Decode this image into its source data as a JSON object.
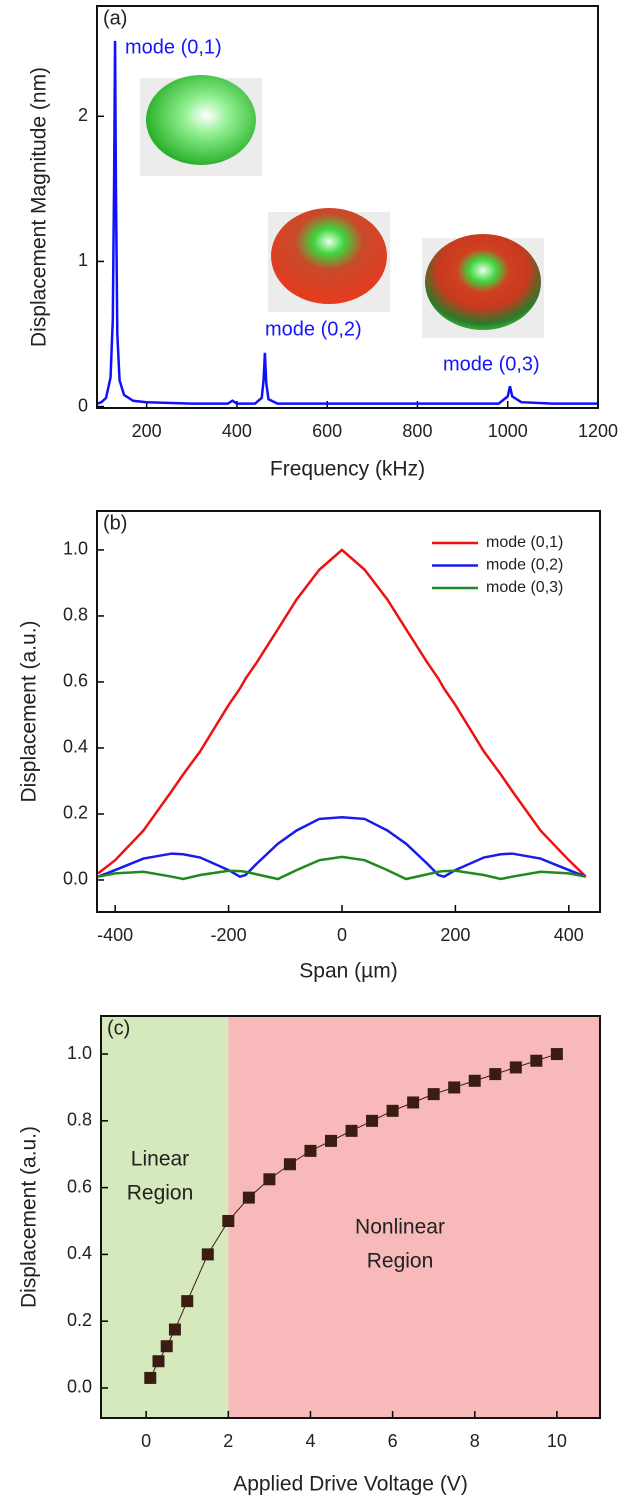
{
  "chart_data": [
    {
      "type": "line",
      "label": "(a)",
      "ylabel": "Displacement Magnitude (nm)",
      "xlabel": "Frequency (kHz)",
      "x": [
        90,
        100,
        110,
        120,
        125,
        128,
        130,
        132,
        135,
        140,
        150,
        170,
        200,
        300,
        380,
        390,
        400,
        440,
        455,
        459,
        462,
        465,
        470,
        490,
        550,
        700,
        900,
        980,
        1000,
        1005,
        1010,
        1030,
        1100,
        1200
      ],
      "values": [
        0.02,
        0.03,
        0.06,
        0.2,
        0.6,
        1.6,
        2.52,
        1.5,
        0.5,
        0.18,
        0.08,
        0.04,
        0.03,
        0.02,
        0.02,
        0.04,
        0.02,
        0.02,
        0.06,
        0.18,
        0.37,
        0.16,
        0.05,
        0.02,
        0.02,
        0.02,
        0.02,
        0.02,
        0.07,
        0.14,
        0.07,
        0.03,
        0.02,
        0.02
      ],
      "color": "#1010ff",
      "annotations": [
        "mode (0,1)",
        "mode (0,2)",
        "mode (0,3)"
      ],
      "annotation_color": "#1515ff",
      "xlim": [
        90,
        1200
      ],
      "xticks": [
        200,
        400,
        600,
        800,
        1000,
        1200
      ],
      "ylim": [
        -0.01,
        2.76
      ],
      "yticks": [
        0,
        1,
        2
      ]
    },
    {
      "type": "line",
      "label": "(b)",
      "ylabel": "Displacement (a.u.)",
      "xlabel": "Span (µm)",
      "x": [
        -430,
        -400,
        -350,
        -300,
        -280,
        -250,
        -200,
        -180,
        -170,
        -150,
        -113,
        -80,
        -40,
        0,
        40,
        80,
        113,
        150,
        170,
        180,
        200,
        250,
        280,
        300,
        350,
        400,
        430
      ],
      "series": [
        {
          "name": "mode (0,1)",
          "color": "#ee1111",
          "values": [
            0.02,
            0.06,
            0.15,
            0.27,
            0.32,
            0.39,
            0.53,
            0.58,
            0.61,
            0.66,
            0.76,
            0.85,
            0.94,
            1.0,
            0.94,
            0.85,
            0.76,
            0.66,
            0.61,
            0.58,
            0.53,
            0.39,
            0.32,
            0.27,
            0.15,
            0.06,
            0.01
          ]
        },
        {
          "name": "mode (0,2)",
          "color": "#1a1aee",
          "values": [
            0.01,
            0.03,
            0.065,
            0.08,
            0.078,
            0.068,
            0.03,
            0.01,
            0.015,
            0.05,
            0.11,
            0.15,
            0.185,
            0.19,
            0.185,
            0.15,
            0.11,
            0.05,
            0.015,
            0.01,
            0.03,
            0.068,
            0.078,
            0.08,
            0.065,
            0.03,
            0.01
          ]
        },
        {
          "name": "mode (0,3)",
          "color": "#1f8a1f",
          "values": [
            0.01,
            0.02,
            0.025,
            0.01,
            0.003,
            0.015,
            0.028,
            0.027,
            0.025,
            0.017,
            0.003,
            0.03,
            0.06,
            0.07,
            0.06,
            0.03,
            0.003,
            0.017,
            0.025,
            0.027,
            0.028,
            0.015,
            0.003,
            0.01,
            0.025,
            0.02,
            0.01
          ]
        }
      ],
      "legend": "upper right",
      "xlim": [
        -432,
        455
      ],
      "xticks": [
        -400,
        -200,
        0,
        200,
        400
      ],
      "ylim": [
        -0.097,
        1.118
      ],
      "yticks": [
        {
          "value": 0,
          "label": "0.0"
        },
        0.2,
        0.4,
        0.6,
        0.8,
        {
          "value": 1,
          "label": "1.0"
        }
      ]
    },
    {
      "type": "line",
      "label": "(c)",
      "ylabel": "Displacement (a.u.)",
      "xlabel": "Applied Drive Voltage (V)",
      "x": [
        0.1,
        0.3,
        0.5,
        0.7,
        1.0,
        1.5,
        2,
        2.5,
        3,
        3.5,
        4,
        4.5,
        5,
        5.5,
        6,
        6.5,
        7,
        7.5,
        8,
        8.5,
        9,
        9.5,
        10
      ],
      "values": [
        0.03,
        0.08,
        0.125,
        0.175,
        0.26,
        0.4,
        0.5,
        0.57,
        0.625,
        0.67,
        0.71,
        0.74,
        0.77,
        0.8,
        0.83,
        0.855,
        0.88,
        0.9,
        0.92,
        0.94,
        0.96,
        0.98,
        1.0
      ],
      "color": "#3b1c12",
      "marker": "square",
      "region_boundary": 2,
      "regions": [
        {
          "label": [
            "Linear",
            "Region"
          ],
          "color": "#d5e9bd"
        },
        {
          "label": [
            "Nonlinear",
            "Region"
          ],
          "color": "#f7b9b9"
        }
      ],
      "xlim": [
        -1.1,
        11.05
      ],
      "xticks": [
        0,
        2,
        4,
        6,
        8,
        10
      ],
      "ylim": [
        -0.09,
        1.114
      ],
      "yticks": [
        {
          "value": 0,
          "label": "0.0"
        },
        0.2,
        0.4,
        0.6,
        0.8,
        {
          "value": 1,
          "label": "1.0"
        }
      ]
    }
  ]
}
